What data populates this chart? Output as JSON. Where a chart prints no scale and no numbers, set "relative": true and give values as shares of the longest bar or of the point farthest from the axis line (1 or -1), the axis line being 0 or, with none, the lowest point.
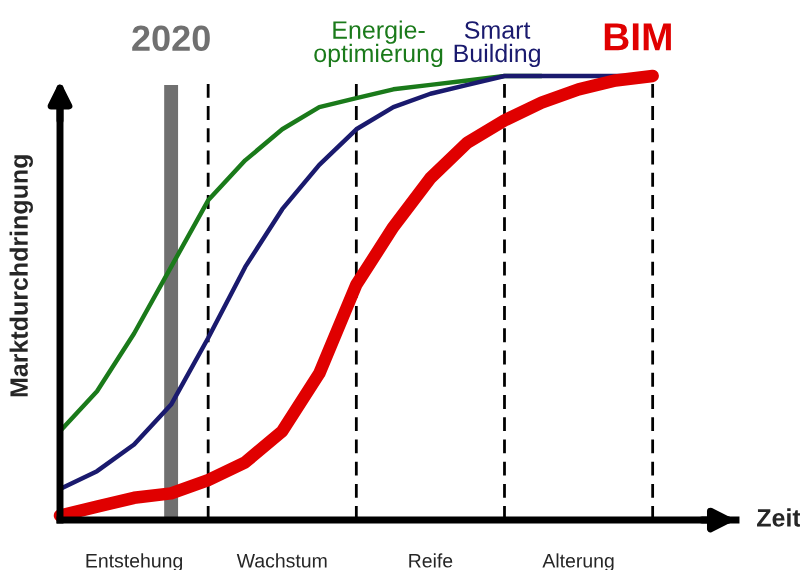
{
  "chart_data": {
    "type": "line",
    "relative": true,
    "xlabel": "Zeit",
    "ylabel": "Marktdurchdringung",
    "categories": [
      null,
      null,
      "Entstehung",
      null,
      null,
      null,
      "Wachstum",
      null,
      null,
      null,
      "Reife",
      null,
      null,
      null,
      "Alterung",
      null,
      null,
      null,
      null
    ],
    "series": [
      {
        "name": "Energie-\noptimierung",
        "color": "#1a7a1a",
        "values": [
          0.2,
          0.29,
          0.42,
          0.57,
          0.72,
          0.81,
          0.88,
          0.93,
          0.95,
          0.97,
          0.98,
          0.99,
          1,
          1,
          null,
          null,
          null,
          null,
          null
        ]
      },
      {
        "name": "Smart\nBuilding",
        "color": "#1a1a6e",
        "values": [
          0.07,
          0.11,
          0.17,
          0.26,
          0.41,
          0.57,
          0.7,
          0.8,
          0.88,
          0.93,
          0.96,
          0.98,
          1,
          1,
          1,
          1,
          1,
          null,
          null
        ]
      },
      {
        "name": "BIM",
        "color": "#e00000",
        "values": [
          0.01,
          0.03,
          0.05,
          0.06,
          0.09,
          0.13,
          0.2,
          0.33,
          0.53,
          0.66,
          0.77,
          0.85,
          0.9,
          0.94,
          0.97,
          0.99,
          1,
          null,
          null
        ]
      }
    ],
    "annotations": [
      "2020"
    ],
    "grid": "x",
    "legend": false
  }
}
